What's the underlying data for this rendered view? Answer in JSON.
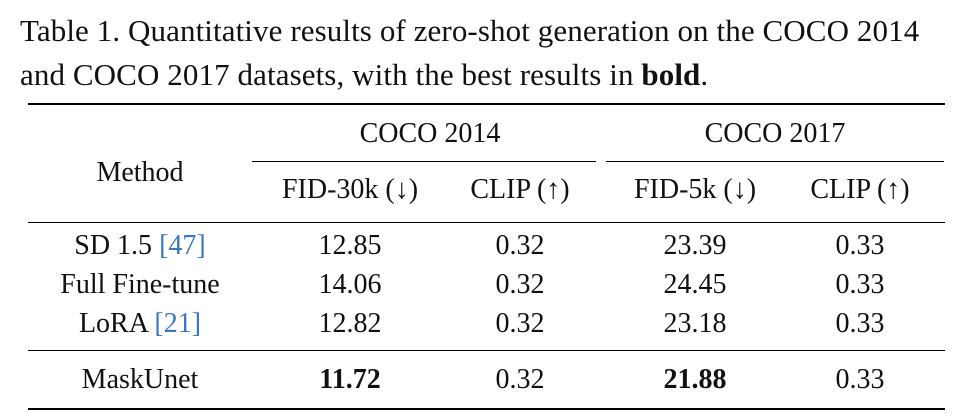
{
  "caption": {
    "prefix": "Table 1. Quantitative results of zero-shot generation on the COCO 2014 and COCO 2017 datasets, with the best results in ",
    "bold_word": "bold",
    "suffix": "."
  },
  "table": {
    "method_header": "Method",
    "groups": [
      "COCO 2014",
      "COCO 2017"
    ],
    "columns": [
      "FID-30k (↓)",
      "CLIP (↑)",
      "FID-5k (↓)",
      "CLIP (↑)"
    ],
    "rows": [
      {
        "method": "SD 1.5",
        "ref": "47",
        "values": [
          "12.85",
          "0.32",
          "23.39",
          "0.33"
        ]
      },
      {
        "method": "Full Fine-tune",
        "ref": "",
        "values": [
          "14.06",
          "0.32",
          "24.45",
          "0.33"
        ]
      },
      {
        "method": "LoRA",
        "ref": "21",
        "values": [
          "12.82",
          "0.32",
          "23.18",
          "0.33"
        ]
      }
    ],
    "final_row": {
      "method": "MaskUnet",
      "values": [
        "11.72",
        "0.32",
        "21.88",
        "0.33"
      ]
    },
    "ref_color": "#3a77c2"
  }
}
